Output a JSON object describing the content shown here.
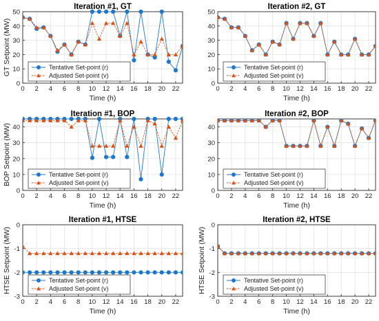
{
  "colors": {
    "tentative": "#1f77c8",
    "adjusted": "#d95319",
    "grid": "#e2e2e2",
    "axis": "#262626"
  },
  "chart_data": [
    {
      "type": "line",
      "title": "Iteration #1, GT",
      "xlabel": "Time (h)",
      "ylabel": "GT Setpoint (MW)",
      "xlim": [
        0,
        23
      ],
      "ylim": [
        0,
        50
      ],
      "xticks": [
        0,
        2,
        4,
        6,
        8,
        10,
        12,
        14,
        16,
        18,
        20,
        22
      ],
      "yticks": [
        0,
        10,
        20,
        30,
        40,
        50
      ],
      "grid": true,
      "legend_position": "bottom-left",
      "x": [
        0,
        1,
        2,
        3,
        4,
        5,
        6,
        7,
        8,
        9,
        10,
        11,
        12,
        13,
        14,
        15,
        16,
        17,
        18,
        19,
        20,
        21,
        22,
        23
      ],
      "series": [
        {
          "name": "Tentative Set-point (r)",
          "marker": "circle",
          "values": [
            46,
            45,
            38,
            39,
            33,
            22,
            27,
            20,
            29,
            27,
            50,
            50,
            50,
            50,
            33,
            50,
            16,
            50,
            20,
            18,
            50,
            15,
            9,
            26
          ]
        },
        {
          "name": "Adjusted Set-point (v)",
          "marker": "triangle",
          "values": [
            46,
            45,
            39,
            39,
            33,
            23,
            27,
            20,
            29,
            27,
            42,
            31,
            42,
            42,
            33,
            42,
            20,
            29,
            20,
            20,
            31,
            20,
            20,
            26
          ]
        }
      ]
    },
    {
      "type": "line",
      "title": "Iteration #2, GT",
      "xlabel": "Time (h)",
      "ylabel": "",
      "xlim": [
        0,
        23
      ],
      "ylim": [
        0,
        50
      ],
      "xticks": [
        0,
        2,
        4,
        6,
        8,
        10,
        12,
        14,
        16,
        18,
        20,
        22
      ],
      "yticks": [
        0,
        10,
        20,
        30,
        40,
        50
      ],
      "grid": true,
      "legend_position": "bottom-left",
      "x": [
        0,
        1,
        2,
        3,
        4,
        5,
        6,
        7,
        8,
        9,
        10,
        11,
        12,
        13,
        14,
        15,
        16,
        17,
        18,
        19,
        20,
        21,
        22,
        23
      ],
      "series": [
        {
          "name": "Tentative Set-point (r)",
          "marker": "circle",
          "values": [
            46,
            45,
            39,
            39,
            33,
            23,
            27,
            20,
            29,
            27,
            42,
            31,
            42,
            42,
            33,
            42,
            20,
            29,
            20,
            20,
            31,
            20,
            20,
            26
          ]
        },
        {
          "name": "Adjusted Set-point (v)",
          "marker": "triangle",
          "values": [
            46,
            45,
            39,
            39,
            33,
            23,
            27,
            20,
            29,
            27,
            42,
            31,
            42,
            42,
            33,
            42,
            20,
            29,
            20,
            20,
            31,
            20,
            20,
            26
          ]
        }
      ]
    },
    {
      "type": "line",
      "title": "Iteration #1, BOP",
      "xlabel": "Time (h)",
      "ylabel": "BOP Setpoint (MW)",
      "xlim": [
        0,
        23
      ],
      "ylim": [
        0,
        45
      ],
      "xticks": [
        0,
        2,
        4,
        6,
        8,
        10,
        12,
        14,
        16,
        18,
        20,
        22
      ],
      "yticks": [
        0,
        10,
        20,
        30,
        40
      ],
      "grid": true,
      "legend_position": "bottom-left",
      "x": [
        0,
        1,
        2,
        3,
        4,
        5,
        6,
        7,
        8,
        9,
        10,
        11,
        12,
        13,
        14,
        15,
        16,
        17,
        18,
        19,
        20,
        21,
        22,
        23
      ],
      "series": [
        {
          "name": "Tentative Set-point (r)",
          "marker": "circle",
          "values": [
            45,
            45,
            45,
            45,
            45,
            45,
            45,
            45,
            45,
            45,
            20.5,
            45,
            21,
            21,
            45,
            21,
            45,
            7,
            45,
            45,
            10,
            45,
            45,
            45
          ]
        },
        {
          "name": "Adjusted Set-point (v)",
          "marker": "triangle",
          "values": [
            44,
            44,
            44,
            44,
            44,
            44,
            44,
            40,
            44,
            44,
            28,
            28,
            28,
            28,
            44,
            28,
            40,
            28,
            44,
            42,
            28,
            40,
            33,
            44
          ]
        }
      ]
    },
    {
      "type": "line",
      "title": "Iteration #2, BOP",
      "xlabel": "Time (h)",
      "ylabel": "",
      "xlim": [
        0,
        23
      ],
      "ylim": [
        0,
        45
      ],
      "xticks": [
        0,
        2,
        4,
        6,
        8,
        10,
        12,
        14,
        16,
        18,
        20,
        22
      ],
      "yticks": [
        0,
        10,
        20,
        30,
        40
      ],
      "grid": true,
      "legend_position": "bottom-left",
      "x": [
        0,
        1,
        2,
        3,
        4,
        5,
        6,
        7,
        8,
        9,
        10,
        11,
        12,
        13,
        14,
        15,
        16,
        17,
        18,
        19,
        20,
        21,
        22,
        23
      ],
      "series": [
        {
          "name": "Tentative Set-point (r)",
          "marker": "circle",
          "values": [
            44,
            44,
            44,
            44,
            44,
            44,
            44,
            40,
            44,
            44,
            28,
            28,
            28,
            28,
            44,
            28,
            40,
            28,
            44,
            42,
            28,
            39,
            33,
            44
          ]
        },
        {
          "name": "Adjusted Set-point (v)",
          "marker": "triangle",
          "values": [
            44,
            44,
            44,
            44,
            44,
            44,
            44,
            40,
            44,
            44,
            28,
            28,
            28,
            28,
            44,
            28,
            40,
            28,
            44,
            42,
            28,
            39,
            33,
            44
          ]
        }
      ]
    },
    {
      "type": "line",
      "title": "Iteration #1, HTSE",
      "xlabel": "Time (h)",
      "ylabel": "HTSE Setpoint (MW)",
      "xlim": [
        0,
        23
      ],
      "ylim": [
        -3,
        0
      ],
      "xticks": [
        0,
        2,
        4,
        6,
        8,
        10,
        12,
        14,
        16,
        18,
        20,
        22
      ],
      "yticks": [
        -3,
        -2,
        -1,
        0
      ],
      "grid": true,
      "legend_position": "bottom-left",
      "x": [
        0,
        1,
        2,
        3,
        4,
        5,
        6,
        7,
        8,
        9,
        10,
        11,
        12,
        13,
        14,
        15,
        16,
        17,
        18,
        19,
        20,
        21,
        22,
        23
      ],
      "series": [
        {
          "name": "Tentative Set-point (r)",
          "marker": "circle",
          "values": [
            -2,
            -2,
            -2,
            -2,
            -2,
            -2,
            -2,
            -2,
            -2,
            -2,
            -2,
            -2,
            -2,
            -2,
            -2,
            -2,
            -2,
            -2,
            -2,
            -2,
            -2,
            -2,
            -2,
            -2
          ]
        },
        {
          "name": "Adjusted Set-point (v)",
          "marker": "triangle",
          "values": [
            -0.9,
            -1.2,
            -1.2,
            -1.2,
            -1.2,
            -1.2,
            -1.2,
            -1.2,
            -1.2,
            -1.2,
            -1.2,
            -1.2,
            -1.2,
            -1.2,
            -1.2,
            -1.2,
            -1.2,
            -1.2,
            -1.2,
            -1.2,
            -1.2,
            -1.2,
            -1.2,
            -1.2
          ]
        }
      ]
    },
    {
      "type": "line",
      "title": "Iteration #2, HTSE",
      "xlabel": "Time (h)",
      "ylabel": "HTSE Setpoint (MW)",
      "xlim": [
        0,
        23
      ],
      "ylim": [
        -3,
        0
      ],
      "xticks": [
        0,
        2,
        4,
        6,
        8,
        10,
        12,
        14,
        16,
        18,
        20,
        22
      ],
      "yticks": [
        -3,
        -2,
        -1,
        0
      ],
      "grid": true,
      "legend_position": "bottom-left",
      "x": [
        0,
        1,
        2,
        3,
        4,
        5,
        6,
        7,
        8,
        9,
        10,
        11,
        12,
        13,
        14,
        15,
        16,
        17,
        18,
        19,
        20,
        21,
        22,
        23
      ],
      "series": [
        {
          "name": "Tentative Set-point (r)",
          "marker": "circle",
          "values": [
            -0.9,
            -1.2,
            -1.2,
            -1.2,
            -1.2,
            -1.2,
            -1.2,
            -1.2,
            -1.2,
            -1.2,
            -1.2,
            -1.2,
            -1.2,
            -1.2,
            -1.2,
            -1.2,
            -1.2,
            -1.2,
            -1.2,
            -1.2,
            -1.2,
            -1.2,
            -1.2,
            -1.2
          ]
        },
        {
          "name": "Adjusted Set-point (v)",
          "marker": "triangle",
          "values": [
            -0.9,
            -1.2,
            -1.2,
            -1.2,
            -1.2,
            -1.2,
            -1.2,
            -1.2,
            -1.2,
            -1.2,
            -1.2,
            -1.2,
            -1.2,
            -1.2,
            -1.2,
            -1.2,
            -1.2,
            -1.2,
            -1.2,
            -1.2,
            -1.2,
            -1.2,
            -1.2,
            -1.2
          ]
        }
      ]
    }
  ]
}
